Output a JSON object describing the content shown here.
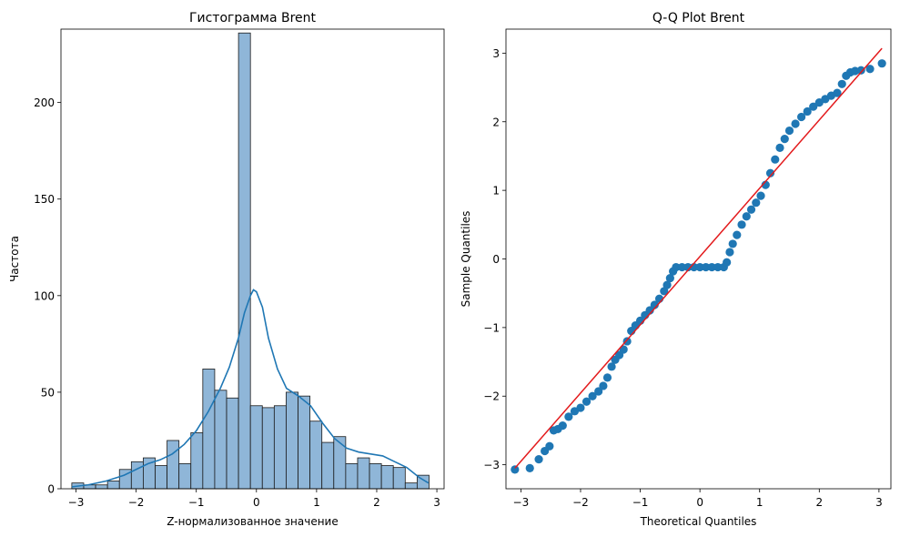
{
  "colors": {
    "bar_fill": "#8fb6d8",
    "bar_edge": "#1a1a1a",
    "kde_line": "#1f77b4",
    "scatter_point": "#1f77b4",
    "reference_line": "#e31a1c"
  },
  "chart_data": [
    {
      "type": "bar",
      "subtype": "histogram-with-kde",
      "title": "Гистограмма Brent",
      "xlabel": "Z-нормализованное значение",
      "ylabel": "Частота",
      "xlim": [
        -3.25,
        3.12
      ],
      "ylim": [
        0,
        238
      ],
      "xticks": [
        -3,
        -2,
        -1,
        0,
        1,
        2,
        3
      ],
      "yticks": [
        0,
        50,
        100,
        150,
        200
      ],
      "grid": false,
      "legend": "none",
      "bin_start": -3.07,
      "bin_width": 0.198,
      "values": [
        3,
        2,
        2,
        4,
        10,
        14,
        16,
        12,
        25,
        13,
        29,
        62,
        51,
        47,
        236,
        43,
        42,
        43,
        50,
        48,
        35,
        24,
        27,
        13,
        16,
        13,
        12,
        11,
        3,
        7
      ],
      "kde": {
        "x": [
          -3.07,
          -2.8,
          -2.5,
          -2.2,
          -2.0,
          -1.8,
          -1.6,
          -1.4,
          -1.2,
          -1.0,
          -0.8,
          -0.6,
          -0.45,
          -0.3,
          -0.2,
          -0.1,
          -0.05,
          0.0,
          0.1,
          0.2,
          0.35,
          0.5,
          0.7,
          0.9,
          1.1,
          1.3,
          1.5,
          1.7,
          1.9,
          2.1,
          2.3,
          2.5,
          2.7,
          2.86
        ],
        "y": [
          1,
          2,
          4,
          7,
          10,
          13,
          15,
          18,
          23,
          30,
          40,
          52,
          63,
          78,
          91,
          100,
          103,
          102,
          94,
          78,
          62,
          52,
          48,
          43,
          34,
          26,
          21,
          19,
          18,
          17,
          14,
          11,
          6,
          3
        ]
      }
    },
    {
      "type": "scatter",
      "subtype": "qq-plot",
      "title": "Q-Q Plot Brent",
      "xlabel": "Theoretical Quantiles",
      "ylabel": "Sample Quantiles",
      "xlim": [
        -3.25,
        3.2
      ],
      "ylim": [
        -3.35,
        3.35
      ],
      "xticks": [
        -3,
        -2,
        -1,
        0,
        1,
        2,
        3
      ],
      "yticks": [
        -3,
        -2,
        -1,
        0,
        1,
        2,
        3
      ],
      "grid": false,
      "legend": "none",
      "points": [
        [
          -3.1,
          -3.07
        ],
        [
          -2.85,
          -3.05
        ],
        [
          -2.7,
          -2.92
        ],
        [
          -2.6,
          -2.8
        ],
        [
          -2.52,
          -2.73
        ],
        [
          -2.45,
          -2.5
        ],
        [
          -2.38,
          -2.48
        ],
        [
          -2.3,
          -2.43
        ],
        [
          -2.2,
          -2.3
        ],
        [
          -2.1,
          -2.22
        ],
        [
          -2.0,
          -2.17
        ],
        [
          -1.9,
          -2.08
        ],
        [
          -1.8,
          -2.0
        ],
        [
          -1.7,
          -1.93
        ],
        [
          -1.62,
          -1.85
        ],
        [
          -1.55,
          -1.73
        ],
        [
          -1.48,
          -1.57
        ],
        [
          -1.42,
          -1.47
        ],
        [
          -1.35,
          -1.4
        ],
        [
          -1.28,
          -1.32
        ],
        [
          -1.22,
          -1.2
        ],
        [
          -1.15,
          -1.05
        ],
        [
          -1.08,
          -0.97
        ],
        [
          -1.0,
          -0.9
        ],
        [
          -0.92,
          -0.82
        ],
        [
          -0.84,
          -0.75
        ],
        [
          -0.76,
          -0.67
        ],
        [
          -0.68,
          -0.58
        ],
        [
          -0.6,
          -0.47
        ],
        [
          -0.55,
          -0.38
        ],
        [
          -0.5,
          -0.28
        ],
        [
          -0.45,
          -0.18
        ],
        [
          -0.4,
          -0.12
        ],
        [
          -0.3,
          -0.12
        ],
        [
          -0.2,
          -0.12
        ],
        [
          -0.1,
          -0.12
        ],
        [
          0.0,
          -0.12
        ],
        [
          0.1,
          -0.12
        ],
        [
          0.2,
          -0.12
        ],
        [
          0.3,
          -0.12
        ],
        [
          0.4,
          -0.12
        ],
        [
          0.45,
          -0.05
        ],
        [
          0.5,
          0.1
        ],
        [
          0.55,
          0.22
        ],
        [
          0.62,
          0.35
        ],
        [
          0.7,
          0.5
        ],
        [
          0.78,
          0.62
        ],
        [
          0.86,
          0.72
        ],
        [
          0.94,
          0.82
        ],
        [
          1.02,
          0.92
        ],
        [
          1.1,
          1.08
        ],
        [
          1.18,
          1.25
        ],
        [
          1.26,
          1.45
        ],
        [
          1.34,
          1.62
        ],
        [
          1.42,
          1.75
        ],
        [
          1.5,
          1.87
        ],
        [
          1.6,
          1.97
        ],
        [
          1.7,
          2.07
        ],
        [
          1.8,
          2.15
        ],
        [
          1.9,
          2.22
        ],
        [
          2.0,
          2.28
        ],
        [
          2.1,
          2.33
        ],
        [
          2.2,
          2.38
        ],
        [
          2.3,
          2.42
        ],
        [
          2.38,
          2.55
        ],
        [
          2.45,
          2.67
        ],
        [
          2.52,
          2.72
        ],
        [
          2.6,
          2.74
        ],
        [
          2.7,
          2.75
        ],
        [
          2.85,
          2.77
        ],
        [
          3.05,
          2.85
        ]
      ],
      "reference_line": {
        "x": [
          -3.1,
          3.05
        ],
        "y": [
          -3.05,
          3.07
        ]
      }
    }
  ]
}
